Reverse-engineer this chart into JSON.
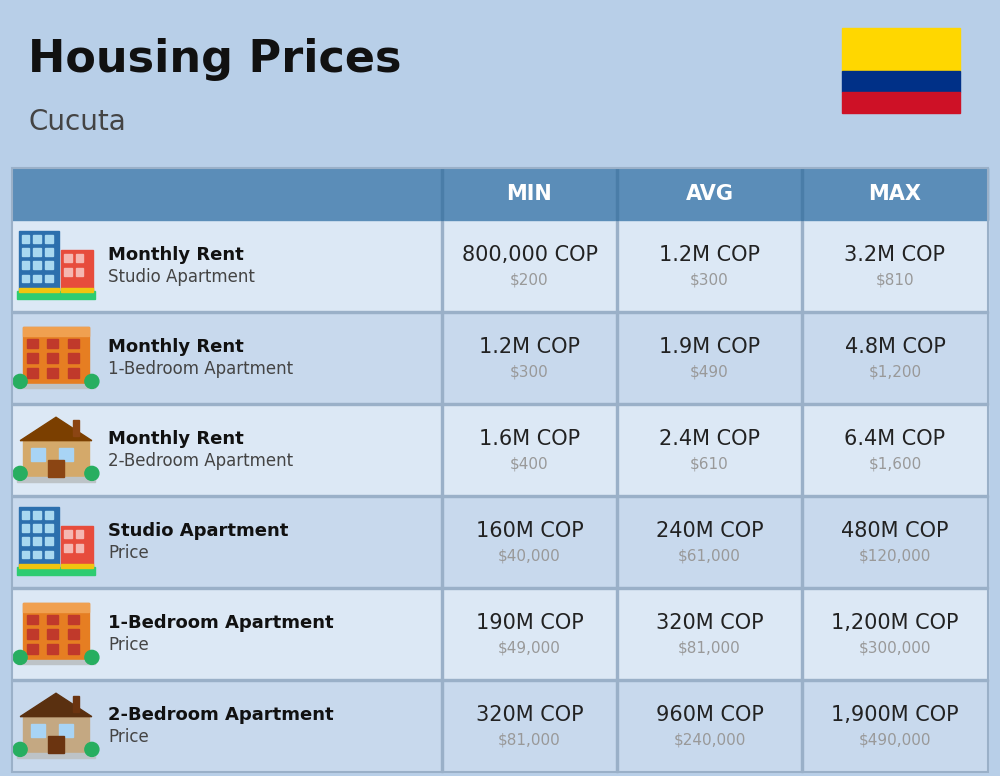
{
  "title": "Housing Prices",
  "subtitle": "Cucuta",
  "background_color": "#b8cfe8",
  "header_color": "#5b8db8",
  "header_text_color": "#ffffff",
  "row_colors": [
    "#dce8f5",
    "#c8d9ed"
  ],
  "col_headers": [
    "MIN",
    "AVG",
    "MAX"
  ],
  "rows": [
    {
      "bold_label": "Monthly Rent",
      "sub_label": "Studio Apartment",
      "icon": "blue_tower",
      "min_cop": "800,000 COP",
      "min_usd": "$200",
      "avg_cop": "1.2M COP",
      "avg_usd": "$300",
      "max_cop": "3.2M COP",
      "max_usd": "$810"
    },
    {
      "bold_label": "Monthly Rent",
      "sub_label": "1-Bedroom Apartment",
      "icon": "orange_block",
      "min_cop": "1.2M COP",
      "min_usd": "$300",
      "avg_cop": "1.9M COP",
      "avg_usd": "$490",
      "max_cop": "4.8M COP",
      "max_usd": "$1,200"
    },
    {
      "bold_label": "Monthly Rent",
      "sub_label": "2-Bedroom Apartment",
      "icon": "beige_house",
      "min_cop": "1.6M COP",
      "min_usd": "$400",
      "avg_cop": "2.4M COP",
      "avg_usd": "$610",
      "max_cop": "6.4M COP",
      "max_usd": "$1,600"
    },
    {
      "bold_label": "Studio Apartment",
      "sub_label": "Price",
      "icon": "blue_tower",
      "min_cop": "160M COP",
      "min_usd": "$40,000",
      "avg_cop": "240M COP",
      "avg_usd": "$61,000",
      "max_cop": "480M COP",
      "max_usd": "$120,000"
    },
    {
      "bold_label": "1-Bedroom Apartment",
      "sub_label": "Price",
      "icon": "orange_block",
      "min_cop": "190M COP",
      "min_usd": "$49,000",
      "avg_cop": "320M COP",
      "avg_usd": "$81,000",
      "max_cop": "1,200M COP",
      "max_usd": "$300,000"
    },
    {
      "bold_label": "2-Bedroom Apartment",
      "sub_label": "Price",
      "icon": "brown_house",
      "min_cop": "320M COP",
      "min_usd": "$81,000",
      "avg_cop": "960M COP",
      "avg_usd": "$240,000",
      "max_cop": "1,900M COP",
      "max_usd": "$490,000"
    }
  ],
  "cop_fontsize": 15,
  "usd_fontsize": 11,
  "label_bold_fontsize": 13,
  "label_sub_fontsize": 12,
  "header_fontsize": 15,
  "title_fontsize": 32,
  "subtitle_fontsize": 20,
  "usd_color": "#999999",
  "cop_color": "#222222",
  "label_bold_color": "#111111",
  "label_sub_color": "#444444",
  "divider_color": "#9ab0c8"
}
